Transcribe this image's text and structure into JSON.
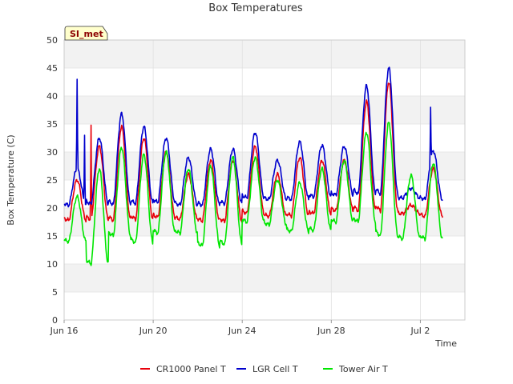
{
  "chart_data": {
    "type": "line",
    "title": "Box Temperatures",
    "xlabel": "Time",
    "ylabel": "Box Temperature (C)",
    "ylim": [
      0,
      50
    ],
    "yticks": [
      0,
      5,
      10,
      15,
      20,
      25,
      30,
      35,
      40,
      45,
      50
    ],
    "xlim": [
      "2023-06-16",
      "2023-07-04"
    ],
    "xticks": [
      {
        "date": "2023-06-16",
        "label": "Jun 16"
      },
      {
        "date": "2023-06-20",
        "label": "Jun 20"
      },
      {
        "date": "2023-06-24",
        "label": "Jun 24"
      },
      {
        "date": "2023-06-28",
        "label": "Jun 28"
      },
      {
        "date": "2023-07-02",
        "label": "Jul 2"
      }
    ],
    "x_unit": "date",
    "data_start": "2023-06-16",
    "data_end": "2023-07-03",
    "grid": true,
    "legend_position": "bottom",
    "site_badge": "SI_met",
    "series": [
      {
        "name": "CR1000 Panel T",
        "color": "#e8000b",
        "daily": [
          {
            "date": "2023-06-16",
            "min": 17.8,
            "max": 25.0
          },
          {
            "date": "2023-06-17",
            "min": 17.9,
            "max": 31.0
          },
          {
            "date": "2023-06-18",
            "min": 17.8,
            "max": 34.5
          },
          {
            "date": "2023-06-19",
            "min": 18.0,
            "max": 32.5
          },
          {
            "date": "2023-06-20",
            "min": 18.3,
            "max": 30.0
          },
          {
            "date": "2023-06-21",
            "min": 18.0,
            "max": 26.0
          },
          {
            "date": "2023-06-22",
            "min": 17.7,
            "max": 28.5
          },
          {
            "date": "2023-06-23",
            "min": 17.6,
            "max": 28.5
          },
          {
            "date": "2023-06-24",
            "min": 19.0,
            "max": 31.0
          },
          {
            "date": "2023-06-25",
            "min": 18.5,
            "max": 26.0
          },
          {
            "date": "2023-06-26",
            "min": 18.6,
            "max": 29.0
          },
          {
            "date": "2023-06-27",
            "min": 19.0,
            "max": 28.5
          },
          {
            "date": "2023-06-28",
            "min": 19.5,
            "max": 28.5
          },
          {
            "date": "2023-06-29",
            "min": 19.5,
            "max": 39.0
          },
          {
            "date": "2023-06-30",
            "min": 19.5,
            "max": 42.5
          },
          {
            "date": "2023-07-01",
            "min": 19.0,
            "max": 20.5
          },
          {
            "date": "2023-07-02",
            "min": 18.5,
            "max": 27.0
          }
        ],
        "spikes": [
          {
            "date": "2023-06-17T05:00",
            "value": 34.8
          }
        ]
      },
      {
        "name": "LGR Cell T",
        "color": "#0000cd",
        "daily": [
          {
            "date": "2023-06-16",
            "min": 20.5,
            "max": 27.0
          },
          {
            "date": "2023-06-17",
            "min": 20.7,
            "max": 32.5
          },
          {
            "date": "2023-06-18",
            "min": 20.6,
            "max": 36.8
          },
          {
            "date": "2023-06-19",
            "min": 20.8,
            "max": 34.5
          },
          {
            "date": "2023-06-20",
            "min": 21.0,
            "max": 32.5
          },
          {
            "date": "2023-06-21",
            "min": 20.5,
            "max": 29.0
          },
          {
            "date": "2023-06-22",
            "min": 20.5,
            "max": 30.5
          },
          {
            "date": "2023-06-23",
            "min": 20.8,
            "max": 30.5
          },
          {
            "date": "2023-06-24",
            "min": 21.8,
            "max": 33.5
          },
          {
            "date": "2023-06-25",
            "min": 21.5,
            "max": 28.5
          },
          {
            "date": "2023-06-26",
            "min": 21.5,
            "max": 31.8
          },
          {
            "date": "2023-06-27",
            "min": 22.0,
            "max": 31.2
          },
          {
            "date": "2023-06-28",
            "min": 22.3,
            "max": 31.0
          },
          {
            "date": "2023-06-29",
            "min": 22.5,
            "max": 41.8
          },
          {
            "date": "2023-06-30",
            "min": 22.5,
            "max": 45.0
          },
          {
            "date": "2023-07-01",
            "min": 21.8,
            "max": 23.5
          },
          {
            "date": "2023-07-02",
            "min": 21.5,
            "max": 30.2
          }
        ],
        "spikes": [
          {
            "date": "2023-06-16T14:00",
            "value": 43.0
          },
          {
            "date": "2023-06-16T22:00",
            "value": 33.0
          },
          {
            "date": "2023-07-02T11:00",
            "value": 38.0
          }
        ]
      },
      {
        "name": "Tower Air T",
        "color": "#00e600",
        "daily": [
          {
            "date": "2023-06-16",
            "min": 14.0,
            "max": 22.0
          },
          {
            "date": "2023-06-17",
            "min": 10.0,
            "max": 27.0
          },
          {
            "date": "2023-06-18",
            "min": 15.0,
            "max": 30.8
          },
          {
            "date": "2023-06-19",
            "min": 13.8,
            "max": 29.5
          },
          {
            "date": "2023-06-20",
            "min": 15.5,
            "max": 30.0
          },
          {
            "date": "2023-06-21",
            "min": 15.5,
            "max": 27.0
          },
          {
            "date": "2023-06-22",
            "min": 13.2,
            "max": 27.5
          },
          {
            "date": "2023-06-23",
            "min": 13.5,
            "max": 29.0
          },
          {
            "date": "2023-06-24",
            "min": 17.5,
            "max": 29.0
          },
          {
            "date": "2023-06-25",
            "min": 17.0,
            "max": 25.0
          },
          {
            "date": "2023-06-26",
            "min": 15.8,
            "max": 24.5
          },
          {
            "date": "2023-06-27",
            "min": 16.0,
            "max": 27.0
          },
          {
            "date": "2023-06-28",
            "min": 17.5,
            "max": 28.5
          },
          {
            "date": "2023-06-29",
            "min": 17.5,
            "max": 33.5
          },
          {
            "date": "2023-06-30",
            "min": 15.0,
            "max": 35.2
          },
          {
            "date": "2023-07-01",
            "min": 14.5,
            "max": 25.8
          },
          {
            "date": "2023-07-02",
            "min": 14.5,
            "max": 28.0
          }
        ],
        "spikes": []
      }
    ]
  }
}
